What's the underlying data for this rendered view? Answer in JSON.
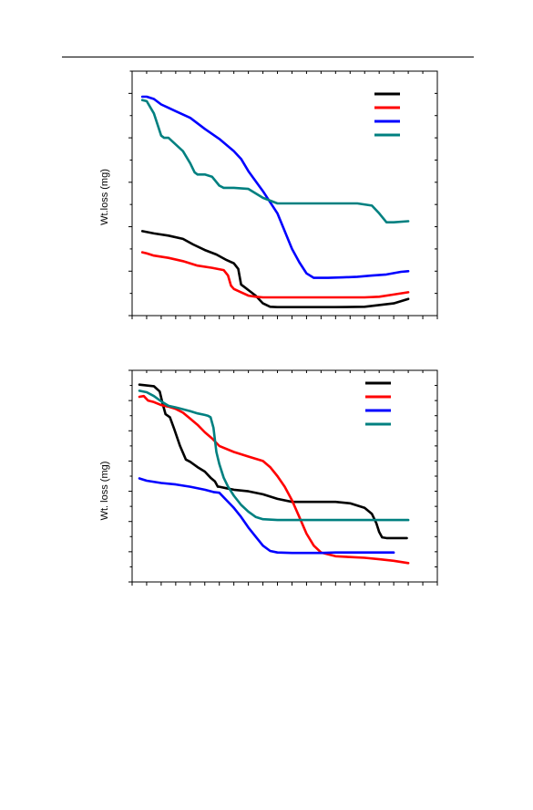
{
  "chart_data": [
    {
      "type": "line",
      "ylabel": "Wt.loss (mg)",
      "xlabel": "",
      "title": "",
      "xlim": [
        0,
        21
      ],
      "ylim": [
        0,
        11
      ],
      "grid": false,
      "legend": "top-right",
      "series": [
        {
          "color": "#000000",
          "x": [
            0.7,
            1.5,
            2.5,
            3.5,
            4.2,
            5.0,
            5.8,
            6.5,
            7.0,
            7.3,
            7.5,
            7.7,
            8.0,
            8.5,
            9.0,
            9.5,
            10,
            11,
            12,
            14,
            16,
            18,
            19.0
          ],
          "y": [
            3.8,
            3.7,
            3.6,
            3.45,
            3.2,
            2.95,
            2.75,
            2.5,
            2.35,
            2.1,
            1.4,
            1.3,
            1.15,
            0.9,
            0.55,
            0.4,
            0.38,
            0.38,
            0.38,
            0.38,
            0.4,
            0.55,
            0.75
          ]
        },
        {
          "color": "#ff0000",
          "x": [
            0.7,
            1.0,
            1.5,
            2.5,
            3.5,
            4.5,
            5.5,
            6.3,
            6.6,
            6.8,
            7.0,
            7.5,
            8.0,
            8.5,
            9.0,
            10,
            11,
            12,
            14,
            16,
            17,
            18,
            19.0
          ],
          "y": [
            2.85,
            2.8,
            2.7,
            2.6,
            2.45,
            2.25,
            2.15,
            2.05,
            1.8,
            1.35,
            1.2,
            1.05,
            0.9,
            0.85,
            0.82,
            0.82,
            0.82,
            0.82,
            0.82,
            0.82,
            0.85,
            0.95,
            1.05
          ]
        },
        {
          "color": "#0000ff",
          "x": [
            0.7,
            1.0,
            1.5,
            2.0,
            2.5,
            3.0,
            4.0,
            5.0,
            6.0,
            7.0,
            7.5,
            8.0,
            9.0,
            10.0,
            10.5,
            11.0,
            11.5,
            12.0,
            12.5,
            13.0,
            13.5,
            14.5,
            15.5,
            16.5,
            17.5,
            18.5,
            19.0
          ],
          "y": [
            9.85,
            9.85,
            9.75,
            9.5,
            9.35,
            9.2,
            8.9,
            8.4,
            7.95,
            7.4,
            7.05,
            6.5,
            5.6,
            4.6,
            3.8,
            3.0,
            2.4,
            1.9,
            1.7,
            1.7,
            1.7,
            1.72,
            1.75,
            1.8,
            1.85,
            1.97,
            2.0
          ]
        },
        {
          "color": "#008080",
          "x": [
            0.7,
            1.0,
            1.5,
            2.0,
            2.2,
            2.5,
            3.0,
            3.5,
            4.0,
            4.3,
            4.5,
            5.0,
            5.5,
            6.0,
            6.3,
            6.6,
            7.0,
            8.0,
            9.0,
            10,
            11,
            12,
            14,
            15.5,
            16.5,
            17.0,
            17.5,
            18.0,
            19.0
          ],
          "y": [
            9.7,
            9.65,
            9.1,
            8.1,
            8.0,
            8.0,
            7.7,
            7.4,
            6.85,
            6.45,
            6.35,
            6.35,
            6.25,
            5.85,
            5.75,
            5.75,
            5.75,
            5.7,
            5.3,
            5.05,
            5.05,
            5.05,
            5.05,
            5.05,
            4.95,
            4.6,
            4.2,
            4.2,
            4.25
          ]
        }
      ]
    },
    {
      "type": "line",
      "ylabel": "Wt. loss (mg)",
      "xlabel": "",
      "title": "",
      "xlim": [
        0,
        21
      ],
      "ylim": [
        0,
        14
      ],
      "grid": false,
      "legend": "top-right",
      "series": [
        {
          "color": "#000000",
          "x": [
            0.5,
            1.0,
            1.5,
            1.9,
            2.1,
            2.3,
            2.6,
            2.9,
            3.3,
            3.7,
            4.0,
            4.5,
            5.0,
            5.4,
            5.7,
            5.9,
            6.0,
            6.5,
            7.0,
            8.0,
            9.0,
            10,
            11,
            11.5,
            12,
            13,
            14,
            15,
            16,
            16.5,
            16.8,
            17.0,
            17.2,
            17.5,
            18.0,
            18.5,
            18.9
          ],
          "y": [
            13.05,
            13.0,
            12.95,
            12.6,
            11.8,
            11.1,
            10.9,
            10.1,
            9.0,
            8.1,
            7.95,
            7.6,
            7.3,
            6.9,
            6.65,
            6.3,
            6.3,
            6.2,
            6.1,
            6.0,
            5.8,
            5.5,
            5.3,
            5.3,
            5.3,
            5.3,
            5.3,
            5.2,
            4.9,
            4.5,
            3.9,
            3.3,
            2.95,
            2.9,
            2.9,
            2.9,
            2.9
          ]
        },
        {
          "color": "#ff0000",
          "x": [
            0.5,
            0.8,
            1.1,
            1.5,
            2.0,
            2.5,
            3.0,
            3.5,
            4.0,
            4.5,
            5.0,
            5.5,
            6.0,
            7.0,
            8.0,
            9.0,
            9.5,
            10,
            10.5,
            11,
            11.5,
            12,
            12.5,
            13,
            14,
            15,
            16,
            17,
            18,
            19.0
          ],
          "y": [
            12.25,
            12.3,
            12.0,
            11.9,
            11.7,
            11.6,
            11.45,
            11.2,
            10.8,
            10.4,
            9.9,
            9.5,
            9.0,
            8.6,
            8.3,
            8.0,
            7.6,
            7.0,
            6.3,
            5.4,
            4.3,
            3.2,
            2.4,
            1.95,
            1.7,
            1.65,
            1.6,
            1.5,
            1.4,
            1.25
          ]
        },
        {
          "color": "#0000ff",
          "x": [
            0.5,
            1.0,
            2.0,
            3.0,
            4.0,
            5.0,
            5.6,
            6.0,
            6.5,
            7.0,
            7.5,
            8.0,
            8.5,
            9.0,
            9.5,
            10,
            11,
            12,
            13,
            14,
            15,
            16,
            17,
            18.0
          ],
          "y": [
            6.85,
            6.7,
            6.55,
            6.45,
            6.3,
            6.1,
            5.95,
            5.9,
            5.4,
            4.9,
            4.3,
            3.6,
            3.0,
            2.4,
            2.05,
            1.95,
            1.92,
            1.92,
            1.92,
            1.95,
            1.95,
            1.95,
            1.95,
            1.95
          ]
        },
        {
          "color": "#008080",
          "x": [
            0.5,
            1.0,
            1.5,
            2.0,
            2.5,
            3.0,
            4.0,
            4.5,
            5.0,
            5.2,
            5.4,
            5.6,
            5.8,
            6.0,
            6.3,
            6.6,
            7.0,
            7.5,
            8.0,
            8.5,
            9.0,
            10,
            11,
            12,
            13,
            14,
            15,
            16,
            17,
            18,
            19.0
          ],
          "y": [
            12.65,
            12.55,
            12.3,
            11.95,
            11.65,
            11.55,
            11.3,
            11.15,
            11.05,
            11.0,
            10.9,
            10.2,
            8.6,
            7.8,
            6.9,
            6.3,
            5.7,
            5.1,
            4.65,
            4.3,
            4.15,
            4.1,
            4.1,
            4.1,
            4.1,
            4.1,
            4.1,
            4.1,
            4.1,
            4.1,
            4.1
          ]
        }
      ]
    }
  ]
}
